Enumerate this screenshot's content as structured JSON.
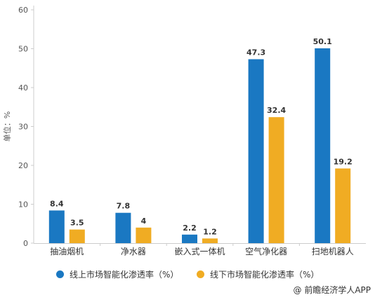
{
  "chart_data": {
    "type": "bar",
    "ylabel": "单位：%",
    "ylim": [
      0,
      60
    ],
    "yticks": [
      0,
      10,
      20,
      30,
      40,
      50,
      60
    ],
    "grid": false,
    "legend_position": "bottom",
    "categories": [
      "抽油烟机",
      "净水器",
      "嵌入式一体机",
      "空气净化器",
      "扫地机器人"
    ],
    "series": [
      {
        "name": "线上市场智能化渗透率（%）",
        "color": "#1a78c2",
        "values": [
          8.4,
          7.8,
          2.2,
          47.3,
          50.1
        ],
        "labels": [
          "8.4",
          "7.8",
          "2.2",
          "47.3",
          "50.1"
        ]
      },
      {
        "name": "线下市场智能化渗透率（%）",
        "color": "#f0ac23",
        "values": [
          3.5,
          4,
          1.2,
          32.4,
          19.2
        ],
        "labels": [
          "3.5",
          "4",
          "1.2",
          "32.4",
          "19.2"
        ]
      }
    ]
  },
  "source_text": "@ 前瞻经济学人APP"
}
